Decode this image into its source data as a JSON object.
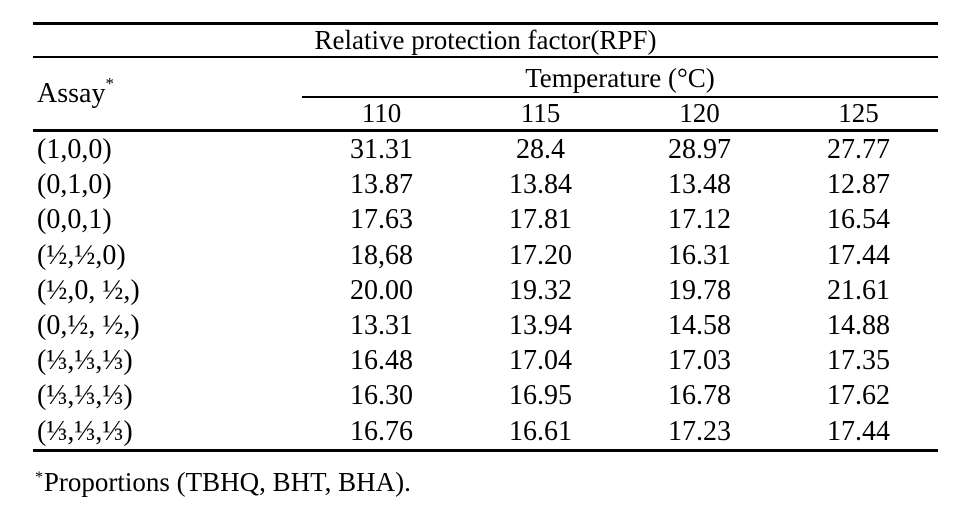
{
  "title": "Relative protection factor(RPF)",
  "header": {
    "assay_label": "Assay",
    "assay_marker": "*",
    "temperature_label": "Temperature (°C)",
    "temperatures": [
      "110",
      "115",
      "120",
      "125"
    ]
  },
  "rows": [
    {
      "assay": "(1,0,0)",
      "values": [
        "31.31",
        "28.4",
        "28.97",
        "27.77"
      ]
    },
    {
      "assay": "(0,1,0)",
      "values": [
        "13.87",
        "13.84",
        "13.48",
        "12.87"
      ]
    },
    {
      "assay": "(0,0,1)",
      "values": [
        "17.63",
        "17.81",
        "17.12",
        "16.54"
      ]
    },
    {
      "assay": "(½,½,0)",
      "values": [
        "18,68",
        "17.20",
        "16.31",
        "17.44"
      ]
    },
    {
      "assay": "(½,0, ½,)",
      "values": [
        "20.00",
        "19.32",
        "19.78",
        "21.61"
      ]
    },
    {
      "assay": "(0,½, ½,)",
      "values": [
        "13.31",
        "13.94",
        "14.58",
        "14.88"
      ]
    },
    {
      "assay": "(⅓,⅓,⅓)",
      "values": [
        "16.48",
        "17.04",
        "17.03",
        "17.35"
      ]
    },
    {
      "assay": "(⅓,⅓,⅓)",
      "values": [
        "16.30",
        "16.95",
        "16.78",
        "17.62"
      ]
    },
    {
      "assay": "(⅓,⅓,⅓)",
      "values": [
        "16.76",
        "16.61",
        "17.23",
        "17.44"
      ]
    }
  ],
  "footnote": {
    "marker": "*",
    "text": "Proportions (TBHQ, BHT, BHA)."
  },
  "colors": {
    "text": "#000000",
    "background": "#ffffff",
    "rule": "#000000"
  }
}
